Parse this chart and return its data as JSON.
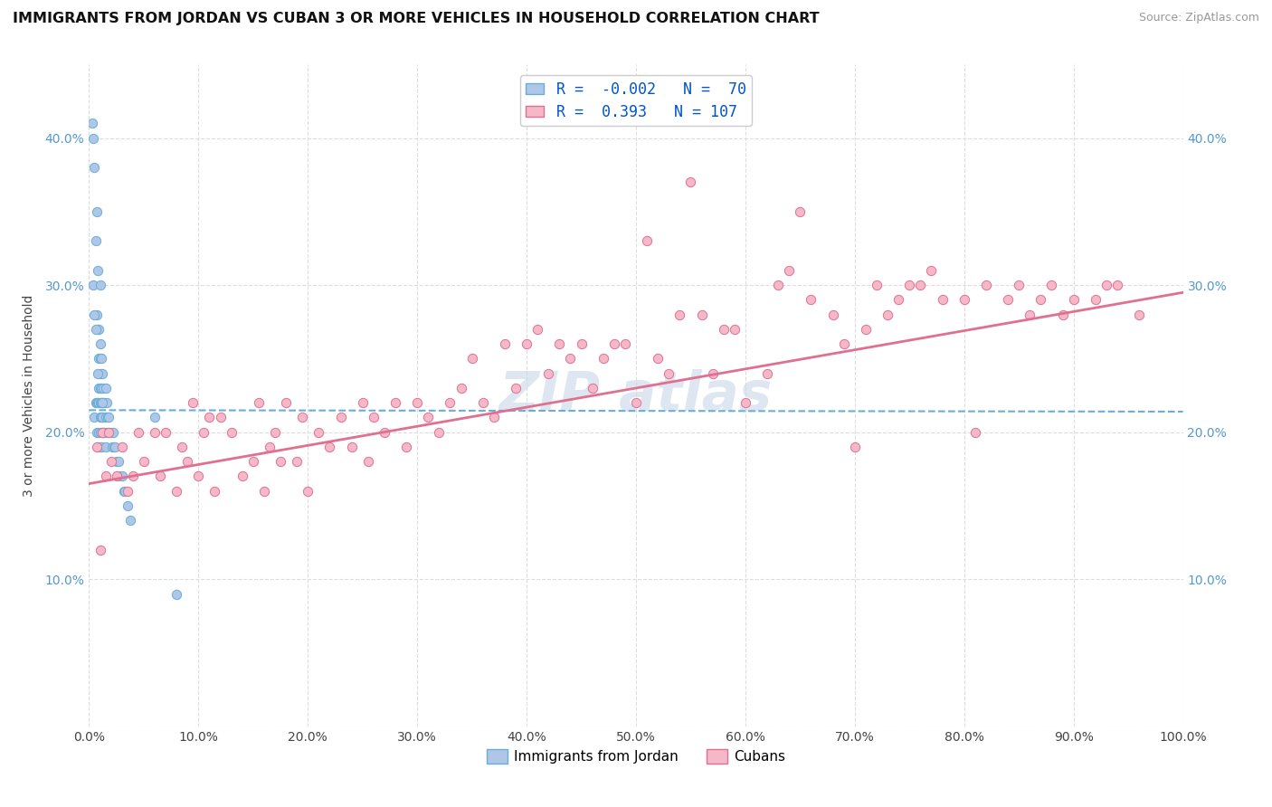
{
  "title": "IMMIGRANTS FROM JORDAN VS CUBAN 3 OR MORE VEHICLES IN HOUSEHOLD CORRELATION CHART",
  "source": "Source: ZipAtlas.com",
  "ylabel_label": "3 or more Vehicles in Household",
  "xlim": [
    0.0,
    1.0
  ],
  "ylim": [
    0.0,
    0.45
  ],
  "x_ticks": [
    0.0,
    0.1,
    0.2,
    0.3,
    0.4,
    0.5,
    0.6,
    0.7,
    0.8,
    0.9,
    1.0
  ],
  "x_tick_labels": [
    "0.0%",
    "10.0%",
    "20.0%",
    "30.0%",
    "40.0%",
    "50.0%",
    "60.0%",
    "70.0%",
    "80.0%",
    "90.0%",
    "100.0%"
  ],
  "y_ticks": [
    0.0,
    0.1,
    0.2,
    0.3,
    0.4
  ],
  "y_tick_labels": [
    "",
    "10.0%",
    "20.0%",
    "30.0%",
    "40.0%"
  ],
  "jordan_color": "#aec6e8",
  "cuban_color": "#f4b8c8",
  "jordan_edge_color": "#6aaed6",
  "cuban_edge_color": "#e07090",
  "jordan_R": -0.002,
  "jordan_N": 70,
  "cuban_R": 0.393,
  "cuban_N": 107,
  "legend_R_color": "#0055cc",
  "background_color": "#ffffff",
  "grid_color": "#dddddd",
  "watermark_color": "#c8d8e8",
  "jordan_trend_start_y": 0.215,
  "jordan_trend_end_y": 0.214,
  "cuban_trend_start_y": 0.165,
  "cuban_trend_end_y": 0.295,
  "jordan_x": [
    0.005,
    0.005,
    0.006,
    0.006,
    0.007,
    0.007,
    0.007,
    0.007,
    0.008,
    0.008,
    0.008,
    0.008,
    0.009,
    0.009,
    0.009,
    0.009,
    0.009,
    0.01,
    0.01,
    0.01,
    0.01,
    0.01,
    0.01,
    0.01,
    0.01,
    0.011,
    0.011,
    0.011,
    0.011,
    0.011,
    0.012,
    0.012,
    0.012,
    0.012,
    0.013,
    0.013,
    0.013,
    0.014,
    0.014,
    0.015,
    0.015,
    0.015,
    0.016,
    0.017,
    0.017,
    0.018,
    0.019,
    0.02,
    0.021,
    0.022,
    0.023,
    0.024,
    0.025,
    0.027,
    0.028,
    0.03,
    0.032,
    0.033,
    0.035,
    0.038,
    0.003,
    0.004,
    0.004,
    0.005,
    0.006,
    0.008,
    0.01,
    0.012,
    0.06,
    0.08
  ],
  "jordan_y": [
    0.38,
    0.21,
    0.33,
    0.22,
    0.35,
    0.28,
    0.22,
    0.2,
    0.31,
    0.27,
    0.22,
    0.19,
    0.27,
    0.25,
    0.23,
    0.22,
    0.2,
    0.26,
    0.25,
    0.24,
    0.23,
    0.22,
    0.21,
    0.2,
    0.19,
    0.25,
    0.23,
    0.22,
    0.21,
    0.19,
    0.24,
    0.22,
    0.21,
    0.2,
    0.23,
    0.22,
    0.2,
    0.22,
    0.2,
    0.23,
    0.21,
    0.19,
    0.22,
    0.21,
    0.2,
    0.21,
    0.2,
    0.2,
    0.19,
    0.2,
    0.19,
    0.19,
    0.18,
    0.18,
    0.17,
    0.17,
    0.16,
    0.16,
    0.15,
    0.14,
    0.41,
    0.4,
    0.3,
    0.28,
    0.27,
    0.24,
    0.3,
    0.22,
    0.21,
    0.09
  ],
  "cuban_x": [
    0.007,
    0.01,
    0.012,
    0.015,
    0.018,
    0.02,
    0.025,
    0.03,
    0.035,
    0.04,
    0.045,
    0.05,
    0.06,
    0.065,
    0.07,
    0.08,
    0.085,
    0.09,
    0.095,
    0.1,
    0.105,
    0.11,
    0.115,
    0.12,
    0.13,
    0.14,
    0.15,
    0.155,
    0.16,
    0.165,
    0.17,
    0.175,
    0.18,
    0.19,
    0.195,
    0.2,
    0.21,
    0.22,
    0.23,
    0.24,
    0.25,
    0.255,
    0.26,
    0.27,
    0.28,
    0.29,
    0.3,
    0.31,
    0.32,
    0.33,
    0.34,
    0.35,
    0.36,
    0.37,
    0.38,
    0.39,
    0.4,
    0.41,
    0.42,
    0.43,
    0.44,
    0.45,
    0.46,
    0.47,
    0.48,
    0.49,
    0.5,
    0.51,
    0.52,
    0.53,
    0.54,
    0.55,
    0.56,
    0.57,
    0.58,
    0.59,
    0.6,
    0.62,
    0.63,
    0.64,
    0.65,
    0.66,
    0.68,
    0.69,
    0.7,
    0.71,
    0.72,
    0.73,
    0.74,
    0.75,
    0.76,
    0.77,
    0.78,
    0.8,
    0.81,
    0.82,
    0.84,
    0.85,
    0.86,
    0.87,
    0.88,
    0.89,
    0.9,
    0.92,
    0.93,
    0.94,
    0.96
  ],
  "cuban_y": [
    0.19,
    0.12,
    0.2,
    0.17,
    0.2,
    0.18,
    0.17,
    0.19,
    0.16,
    0.17,
    0.2,
    0.18,
    0.2,
    0.17,
    0.2,
    0.16,
    0.19,
    0.18,
    0.22,
    0.17,
    0.2,
    0.21,
    0.16,
    0.21,
    0.2,
    0.17,
    0.18,
    0.22,
    0.16,
    0.19,
    0.2,
    0.18,
    0.22,
    0.18,
    0.21,
    0.16,
    0.2,
    0.19,
    0.21,
    0.19,
    0.22,
    0.18,
    0.21,
    0.2,
    0.22,
    0.19,
    0.22,
    0.21,
    0.2,
    0.22,
    0.23,
    0.25,
    0.22,
    0.21,
    0.26,
    0.23,
    0.26,
    0.27,
    0.24,
    0.26,
    0.25,
    0.26,
    0.23,
    0.25,
    0.26,
    0.26,
    0.22,
    0.33,
    0.25,
    0.24,
    0.28,
    0.37,
    0.28,
    0.24,
    0.27,
    0.27,
    0.22,
    0.24,
    0.3,
    0.31,
    0.35,
    0.29,
    0.28,
    0.26,
    0.19,
    0.27,
    0.3,
    0.28,
    0.29,
    0.3,
    0.3,
    0.31,
    0.29,
    0.29,
    0.2,
    0.3,
    0.29,
    0.3,
    0.28,
    0.29,
    0.3,
    0.28,
    0.29,
    0.29,
    0.3,
    0.3,
    0.28
  ]
}
